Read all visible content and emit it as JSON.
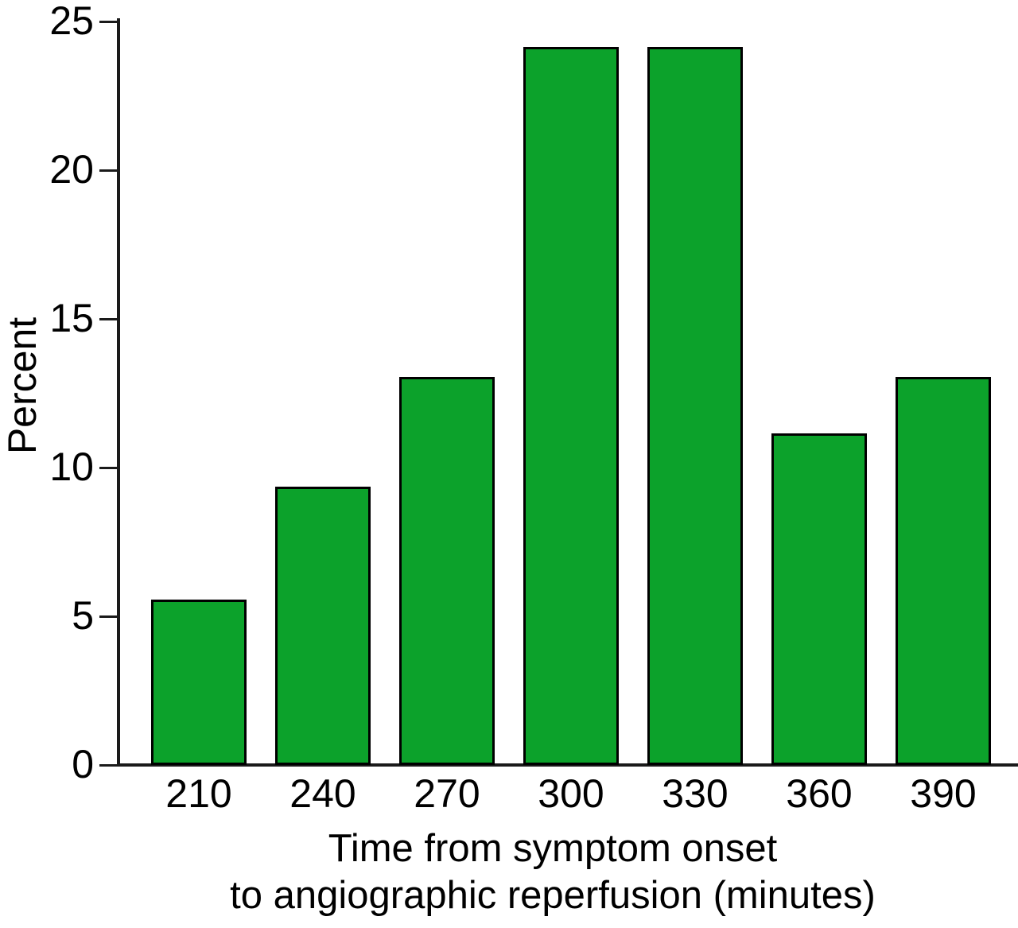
{
  "chart_data": {
    "type": "bar",
    "title": "",
    "ylabel": "Percent",
    "xlabel_lines": [
      "Time from symptom onset",
      "to angiographic reperfusion (minutes)"
    ],
    "categories": [
      "210",
      "240",
      "270",
      "300",
      "330",
      "360",
      "390"
    ],
    "values": [
      5.5,
      9.3,
      13.0,
      24.1,
      24.1,
      11.1,
      13.0
    ],
    "ylim": [
      0,
      25
    ],
    "yticks": [
      0,
      5,
      10,
      15,
      20,
      25
    ],
    "grid": "off",
    "legend": "none",
    "bar_color": "#0ca22b",
    "bar_border_color": "#000000",
    "axis_color": "#1a1a1a",
    "text_color": "#000000",
    "background": "#ffffff"
  }
}
